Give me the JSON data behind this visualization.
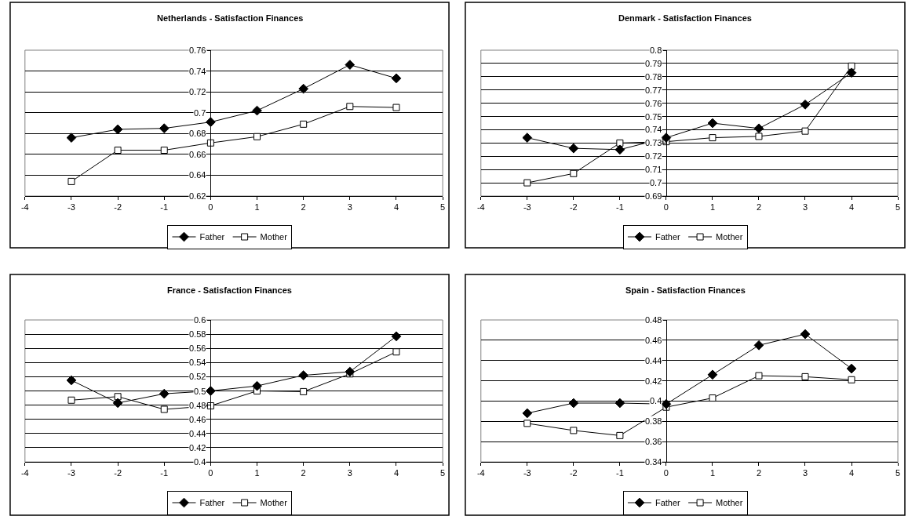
{
  "chart_data": [
    {
      "type": "line",
      "title": "Netherlands - Satisfaction Finances",
      "x": [
        -3,
        -2,
        -1,
        0,
        1,
        2,
        3,
        4
      ],
      "xlim": [
        -4,
        5
      ],
      "xticks": [
        -4,
        -3,
        -2,
        -1,
        0,
        1,
        2,
        3,
        4,
        5
      ],
      "ylim": [
        0.62,
        0.76
      ],
      "yticks": [
        0.62,
        0.64,
        0.66,
        0.68,
        0.7,
        0.72,
        0.74,
        0.76
      ],
      "grid": "y",
      "legend": "bottom",
      "line_style": "solid",
      "series": [
        {
          "name": "Father",
          "color": "#000000",
          "marker": "diamond",
          "values": [
            0.676,
            0.684,
            0.685,
            0.691,
            0.702,
            0.723,
            0.746,
            0.733
          ]
        },
        {
          "name": "Mother",
          "color": "#000000",
          "marker": "square",
          "values": [
            0.634,
            0.664,
            0.664,
            0.671,
            0.677,
            0.689,
            0.706,
            0.705
          ]
        }
      ]
    },
    {
      "type": "line",
      "title": "Denmark - Satisfaction Finances",
      "x": [
        -3,
        -2,
        -1,
        0,
        1,
        2,
        3,
        4
      ],
      "xlim": [
        -4,
        5
      ],
      "xticks": [
        -4,
        -3,
        -2,
        -1,
        0,
        1,
        2,
        3,
        4,
        5
      ],
      "ylim": [
        0.69,
        0.8
      ],
      "yticks": [
        0.69,
        0.7,
        0.71,
        0.72,
        0.73,
        0.74,
        0.75,
        0.76,
        0.77,
        0.78,
        0.79,
        0.8
      ],
      "grid": "y",
      "legend": "bottom",
      "line_style": "solid",
      "series": [
        {
          "name": "Father",
          "color": "#000000",
          "marker": "diamond",
          "values": [
            0.734,
            0.726,
            0.725,
            0.734,
            0.745,
            0.741,
            0.759,
            0.783
          ]
        },
        {
          "name": "Mother",
          "color": "#000000",
          "marker": "square",
          "values": [
            0.7,
            0.707,
            0.73,
            0.731,
            0.734,
            0.735,
            0.739,
            0.788
          ]
        }
      ]
    },
    {
      "type": "line",
      "title": "France - Satisfaction Finances",
      "x": [
        -3,
        -2,
        -1,
        0,
        1,
        2,
        3,
        4
      ],
      "xlim": [
        -4,
        5
      ],
      "xticks": [
        -4,
        -3,
        -2,
        -1,
        0,
        1,
        2,
        3,
        4,
        5
      ],
      "ylim": [
        0.4,
        0.6
      ],
      "yticks": [
        0.4,
        0.42,
        0.44,
        0.46,
        0.48,
        0.5,
        0.52,
        0.54,
        0.56,
        0.58,
        0.6
      ],
      "grid": "y",
      "legend": "bottom",
      "line_style": "solid",
      "series": [
        {
          "name": "Father",
          "color": "#000000",
          "marker": "diamond",
          "values": [
            0.515,
            0.483,
            0.496,
            0.5,
            0.507,
            0.522,
            0.527,
            0.577
          ]
        },
        {
          "name": "Mother",
          "color": "#000000",
          "marker": "square",
          "values": [
            0.487,
            0.492,
            0.474,
            0.479,
            0.5,
            0.499,
            0.524,
            0.555
          ]
        }
      ]
    },
    {
      "type": "line",
      "title": "Spain - Satisfaction Finances",
      "x": [
        -3,
        -2,
        -1,
        0,
        1,
        2,
        3,
        4
      ],
      "xlim": [
        -4,
        5
      ],
      "xticks": [
        -4,
        -3,
        -2,
        -1,
        0,
        1,
        2,
        3,
        4,
        5
      ],
      "ylim": [
        0.34,
        0.48
      ],
      "yticks": [
        0.34,
        0.36,
        0.38,
        0.4,
        0.42,
        0.44,
        0.46,
        0.48
      ],
      "grid": "y",
      "legend": "bottom",
      "line_style": "solid",
      "series": [
        {
          "name": "Father",
          "color": "#000000",
          "marker": "diamond",
          "values": [
            0.388,
            0.398,
            0.398,
            0.397,
            0.426,
            0.455,
            0.466,
            0.432
          ]
        },
        {
          "name": "Mother",
          "color": "#000000",
          "marker": "square",
          "values": [
            0.378,
            0.371,
            0.366,
            0.394,
            0.403,
            0.425,
            0.424,
            0.421
          ]
        }
      ]
    }
  ]
}
